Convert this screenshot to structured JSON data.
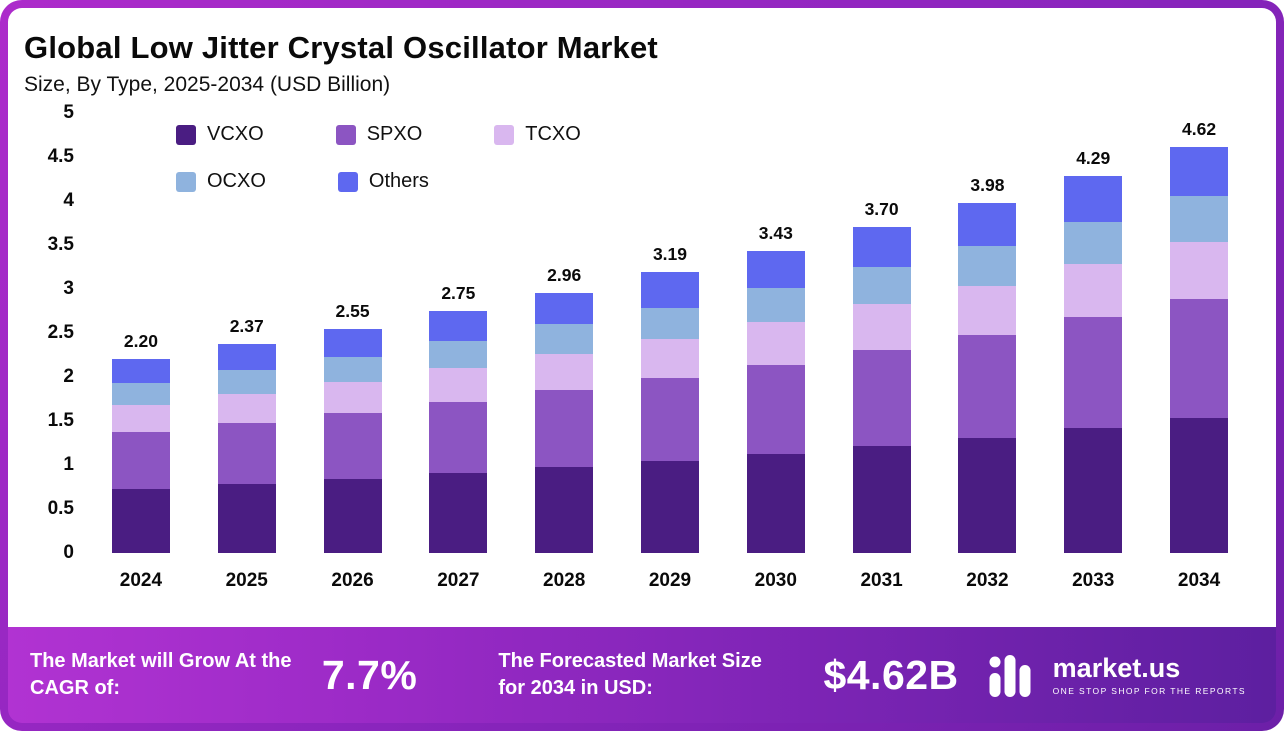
{
  "chart_data": {
    "type": "stacked-bar",
    "title": "Global Low Jitter Crystal Oscillator Market",
    "subtitle": "Size, By Type, 2025-2034 (USD Billion)",
    "categories": [
      "2024",
      "2025",
      "2026",
      "2027",
      "2028",
      "2029",
      "2030",
      "2031",
      "2032",
      "2033",
      "2034"
    ],
    "totals": [
      "2.20",
      "2.37",
      "2.55",
      "2.75",
      "2.96",
      "3.19",
      "3.43",
      "3.70",
      "3.98",
      "4.29",
      "4.62"
    ],
    "ylim": [
      0,
      5
    ],
    "yticks": [
      {
        "value": 0,
        "label": "0"
      },
      {
        "value": 0.5,
        "label": "0.5"
      },
      {
        "value": 1,
        "label": "1"
      },
      {
        "value": 1.5,
        "label": "1.5"
      },
      {
        "value": 2,
        "label": "2"
      },
      {
        "value": 2.5,
        "label": "2.5"
      },
      {
        "value": 3,
        "label": "3"
      },
      {
        "value": 3.5,
        "label": "3.5"
      },
      {
        "value": 4,
        "label": "4"
      },
      {
        "value": 4.5,
        "label": "4.5"
      },
      {
        "value": 5,
        "label": "5"
      }
    ],
    "grid": false,
    "legend_position": "top-left-inside",
    "legend_rows": [
      [
        "VCXO",
        "SPXO",
        "TCXO"
      ],
      [
        "OCXO",
        "Others"
      ]
    ],
    "series": [
      {
        "name": "VCXO",
        "color": "#4a1d82",
        "values": [
          0.73,
          0.78,
          0.84,
          0.91,
          0.98,
          1.05,
          1.13,
          1.22,
          1.31,
          1.42,
          1.53
        ]
      },
      {
        "name": "SPXO",
        "color": "#8c55c2",
        "values": [
          0.65,
          0.7,
          0.75,
          0.81,
          0.87,
          0.94,
          1.01,
          1.09,
          1.17,
          1.26,
          1.36
        ]
      },
      {
        "name": "TCXO",
        "color": "#d9b7ef",
        "values": [
          0.3,
          0.33,
          0.35,
          0.38,
          0.41,
          0.44,
          0.48,
          0.52,
          0.56,
          0.6,
          0.65
        ]
      },
      {
        "name": "OCXO",
        "color": "#8fb3de",
        "values": [
          0.25,
          0.27,
          0.29,
          0.31,
          0.34,
          0.36,
          0.39,
          0.42,
          0.45,
          0.48,
          0.52
        ]
      },
      {
        "name": "Others",
        "color": "#5e68f0",
        "values": [
          0.27,
          0.29,
          0.32,
          0.34,
          0.36,
          0.4,
          0.42,
          0.45,
          0.49,
          0.53,
          0.56
        ]
      }
    ]
  },
  "footer": {
    "cagr_label": "The Market will Grow At the CAGR of:",
    "cagr_value": "7.7%",
    "forecast_label": "The Forecasted Market Size for 2034 in USD:",
    "forecast_value": "$4.62B",
    "brand_name": "market.us",
    "brand_tagline": "ONE STOP SHOP FOR THE REPORTS"
  }
}
